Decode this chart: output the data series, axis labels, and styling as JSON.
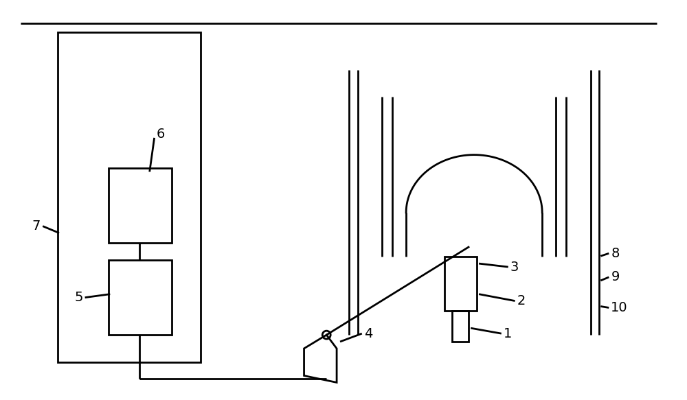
{
  "bg_color": "#ffffff",
  "line_color": "#000000",
  "lw": 2.0,
  "fig_width": 10.0,
  "fig_height": 5.83
}
